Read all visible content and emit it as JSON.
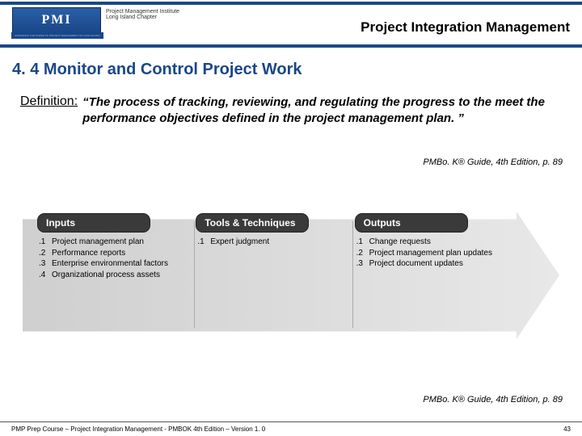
{
  "header": {
    "logo_letters": "PMI",
    "logo_sub1": "Project Management Institute",
    "logo_sub2": "Long Island Chapter",
    "logo_tagline": "EXPANDING THE POWER OF PROJECT MANAGEMENT ON LONG ISLAND",
    "title": "Project Integration Management",
    "line_color": "#1a4788"
  },
  "section_title": "4. 4 Monitor and Control Project Work",
  "definition": {
    "label": "Definition:",
    "text": "“The process of tracking, reviewing, and regulating the progress to the meet the performance objectives defined in the project management plan. ”"
  },
  "citation": "PMBo. K® Guide, 4th Edition, p. 89",
  "diagram": {
    "arrow_bg_start": "#cfcfcf",
    "arrow_bg_end": "#e8e8e8",
    "header_bg": "#3a3a3a",
    "header_fg": "#ffffff",
    "columns": [
      {
        "header": "Inputs",
        "items": [
          {
            "n": ".1",
            "t": "Project management plan"
          },
          {
            "n": ".2",
            "t": "Performance reports"
          },
          {
            "n": ".3",
            "t": "Enterprise environmental factors"
          },
          {
            "n": ".4",
            "t": "Organizational process assets"
          }
        ]
      },
      {
        "header": "Tools & Techniques",
        "items": [
          {
            "n": ".1",
            "t": "Expert judgment"
          }
        ]
      },
      {
        "header": "Outputs",
        "items": [
          {
            "n": ".1",
            "t": "Change requests"
          },
          {
            "n": ".2",
            "t": "Project management plan updates"
          },
          {
            "n": ".3",
            "t": "Project document updates"
          }
        ]
      }
    ]
  },
  "footer": {
    "text": "PMP Prep Course – Project Integration Management - PMBOK 4th Edition – Version 1. 0",
    "page": "43"
  }
}
